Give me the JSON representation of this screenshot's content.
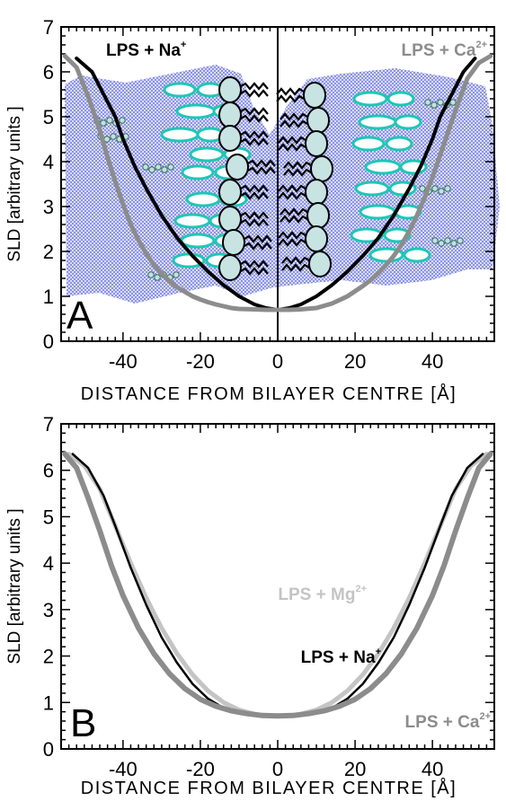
{
  "chart_data": [
    {
      "type": "line",
      "panel_label": "A",
      "xlabel": "DISTANCE FROM BILAYER CENTRE [Å]",
      "ylabel": "SLD [arbitrary units ]",
      "xlim": [
        -56,
        56
      ],
      "ylim": [
        0,
        7
      ],
      "xticks": [
        -40,
        -20,
        0,
        20,
        40
      ],
      "yticks": [
        0,
        1,
        2,
        3,
        4,
        5,
        6,
        7
      ],
      "xtick_labels": [
        "-40",
        "-20",
        "0",
        "20",
        "40"
      ],
      "ytick_labels": [
        "0",
        "1",
        "2",
        "3",
        "4",
        "5",
        "6",
        "7"
      ],
      "center_line_x": 0,
      "series": [
        {
          "name": "LPS + Na⁺",
          "label_base": "LPS + Na",
          "label_sup": "+",
          "color": "#000000",
          "width": 4,
          "x": [
            -52,
            -48,
            -45,
            -42,
            -40,
            -37,
            -34,
            -30,
            -26,
            -22,
            -18,
            -14,
            -10,
            -6,
            -3,
            0,
            3,
            6,
            10,
            14,
            18,
            22,
            26,
            30,
            34,
            37,
            40,
            42,
            45,
            48,
            51
          ],
          "y": [
            6.3,
            6.0,
            5.5,
            5.0,
            4.5,
            3.9,
            3.4,
            2.8,
            2.3,
            1.9,
            1.55,
            1.25,
            1.0,
            0.82,
            0.74,
            0.7,
            0.74,
            0.82,
            1.0,
            1.25,
            1.55,
            1.9,
            2.3,
            2.8,
            3.4,
            3.9,
            4.5,
            5.0,
            5.5,
            6.0,
            6.3
          ]
        },
        {
          "name": "LPS + Ca²⁺",
          "label_base": "LPS + Ca",
          "label_sup": "2+",
          "color": "#8c8c8c",
          "width": 5,
          "x": [
            -55,
            -52,
            -49,
            -46,
            -44,
            -42,
            -40,
            -38,
            -36,
            -34,
            -32,
            -30,
            -28,
            -26,
            -24,
            -22,
            -20,
            -18,
            -16,
            -14,
            -12,
            -10,
            -6,
            -3,
            0,
            3,
            6,
            10,
            14,
            18,
            22,
            24,
            26,
            28,
            30,
            32,
            34,
            36,
            38,
            40,
            42,
            44,
            46,
            49,
            52,
            55
          ],
          "y": [
            6.35,
            6.1,
            5.45,
            4.7,
            4.1,
            3.55,
            3.05,
            2.6,
            2.25,
            1.95,
            1.7,
            1.5,
            1.34,
            1.2,
            1.1,
            1.0,
            0.93,
            0.87,
            0.82,
            0.78,
            0.74,
            0.72,
            0.71,
            0.7,
            0.7,
            0.7,
            0.71,
            0.74,
            0.84,
            1.0,
            1.23,
            1.36,
            1.52,
            1.7,
            1.9,
            2.15,
            2.45,
            2.8,
            3.2,
            3.65,
            4.15,
            4.65,
            5.15,
            5.85,
            6.2,
            6.35
          ]
        }
      ],
      "illustration": "LPS bilayer schematic"
    },
    {
      "type": "line",
      "panel_label": "B",
      "xlabel": "DISTANCE FROM BILAYER CENTRE [Å]",
      "ylabel": "SLD [arbitrary units ]",
      "xlim": [
        -56,
        56
      ],
      "ylim": [
        0,
        7
      ],
      "xticks": [
        -40,
        -20,
        0,
        20,
        40
      ],
      "yticks": [
        0,
        1,
        2,
        3,
        4,
        5,
        6,
        7
      ],
      "xtick_labels": [
        "-40",
        "-20",
        "0",
        "20",
        "40"
      ],
      "ytick_labels": [
        "0",
        "1",
        "2",
        "3",
        "4",
        "5",
        "6",
        "7"
      ],
      "series": [
        {
          "name": "LPS + Mg²⁺",
          "label_base": "LPS + Mg",
          "label_sup": "2+",
          "color": "#c4c4c4",
          "width": 5,
          "x": [
            -54,
            -50,
            -46,
            -42,
            -38,
            -34,
            -30,
            -26,
            -22,
            -18,
            -14,
            -10,
            -6,
            -3,
            0,
            3,
            6,
            10,
            14,
            18,
            22,
            26,
            30,
            34,
            38,
            42,
            46,
            50,
            54
          ],
          "y": [
            6.35,
            6.1,
            5.6,
            4.8,
            4.0,
            3.25,
            2.6,
            2.05,
            1.6,
            1.25,
            1.0,
            0.84,
            0.75,
            0.72,
            0.71,
            0.72,
            0.75,
            0.84,
            1.0,
            1.25,
            1.6,
            2.05,
            2.6,
            3.25,
            4.0,
            4.8,
            5.6,
            6.1,
            6.35
          ]
        },
        {
          "name": "LPS + Na⁺",
          "label_base": "LPS + Na",
          "label_sup": "+",
          "color": "#000000",
          "width": 2.5,
          "x": [
            -53,
            -49,
            -45,
            -42,
            -38,
            -34,
            -30,
            -26,
            -22,
            -18,
            -14,
            -10,
            -6,
            -3,
            0,
            3,
            6,
            10,
            14,
            18,
            22,
            26,
            30,
            34,
            38,
            42,
            45,
            49,
            53
          ],
          "y": [
            6.35,
            6.05,
            5.45,
            4.8,
            3.9,
            3.1,
            2.4,
            1.85,
            1.4,
            1.08,
            0.88,
            0.78,
            0.73,
            0.71,
            0.7,
            0.71,
            0.73,
            0.78,
            0.88,
            1.08,
            1.4,
            1.85,
            2.4,
            3.1,
            3.9,
            4.8,
            5.45,
            6.05,
            6.35
          ]
        },
        {
          "name": "LPS + Ca²⁺",
          "label_base": "LPS + Ca",
          "label_sup": "2+",
          "color": "#8c8c8c",
          "width": 6,
          "x": [
            -55,
            -52,
            -49,
            -46,
            -43,
            -40,
            -36,
            -32,
            -28,
            -24,
            -20,
            -16,
            -12,
            -8,
            -4,
            0,
            4,
            8,
            12,
            16,
            20,
            24,
            28,
            32,
            36,
            40,
            43,
            46,
            49,
            52,
            55
          ],
          "y": [
            6.35,
            6.05,
            5.4,
            4.7,
            3.95,
            3.3,
            2.6,
            2.05,
            1.62,
            1.3,
            1.07,
            0.92,
            0.82,
            0.76,
            0.72,
            0.71,
            0.72,
            0.76,
            0.82,
            0.92,
            1.07,
            1.3,
            1.62,
            2.05,
            2.6,
            3.3,
            3.95,
            4.7,
            5.4,
            6.05,
            6.35
          ]
        }
      ]
    }
  ]
}
